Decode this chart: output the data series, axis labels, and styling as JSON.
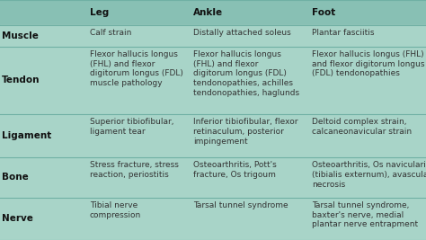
{
  "headers": [
    "",
    "Leg",
    "Ankle",
    "Foot"
  ],
  "rows": [
    {
      "category": "Muscle",
      "leg": "Calf strain",
      "ankle": "Distally attached soleus",
      "foot": "Plantar fasciitis"
    },
    {
      "category": "Tendon",
      "leg": "Flexor hallucis longus\n(FHL) and flexor\ndigitorum longus (FDL)\nmuscle pathology",
      "ankle": "Flexor hallucis longus\n(FHL) and flexor\ndigitorum longus (FDL)\ntendonopathies, achilles\ntendonopathies, haglunds",
      "foot": "Flexor hallucis longus (FHL)\nand flexor digitorum longus\n(FDL) tendonopathies"
    },
    {
      "category": "Ligament",
      "leg": "Superior tibiofibular,\nligament tear",
      "ankle": "Inferior tibiofibular, flexor\nretinaculum, posterior\nimpingement",
      "foot": "Deltoid complex strain,\ncalcaneonavicular strain"
    },
    {
      "category": "Bone",
      "leg": "Stress fracture, stress\nreaction, periostitis",
      "ankle": "Osteoarthritis, Pott's\nfracture, Os trigoum",
      "foot": "Osteoarthritis, Os navicularis\n(tibialis externum), avascular\nnecrosis"
    },
    {
      "category": "Nerve",
      "leg": "Tibial nerve\ncompression",
      "ankle": "Tarsal tunnel syndrome",
      "foot": "Tarsal tunnel syndrome,\nbaxter's nerve, medial\nplantar nerve entrapment"
    }
  ],
  "bg_light": "#a8d4c8",
  "bg_dark": "#88c0b4",
  "header_bg": "#88c0b4",
  "divider_color": "#70b0a4",
  "text_color": "#333333",
  "bold_color": "#111111",
  "figsize": [
    4.74,
    2.67
  ],
  "dpi": 100
}
